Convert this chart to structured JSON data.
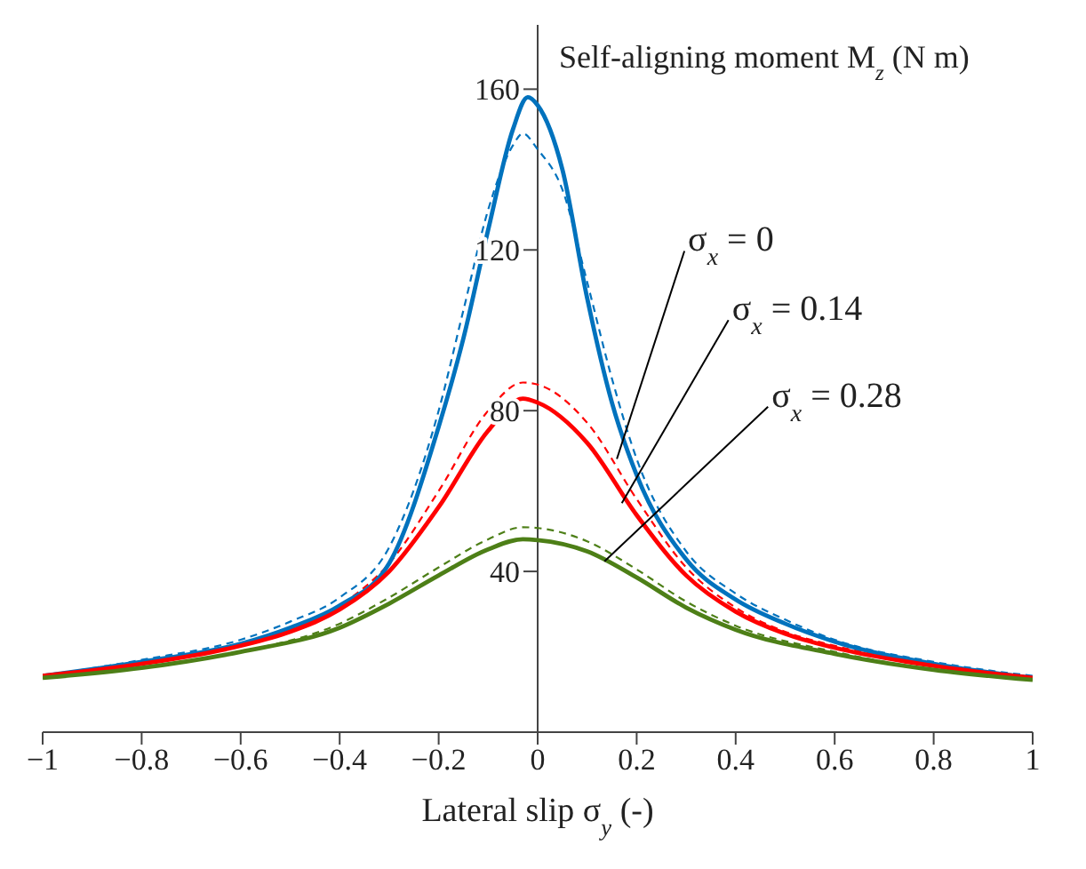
{
  "chart_data": {
    "type": "line",
    "title": "Self-aligning moment M$_{z}$ (N m)",
    "xlabel": "Lateral slip σ$_{y}$ (-)",
    "xlim": [
      -1,
      1
    ],
    "ylim": [
      0,
      176
    ],
    "xticks": [
      {
        "value": -1,
        "label": "−1"
      },
      {
        "value": -0.8,
        "label": "−0.8"
      },
      {
        "value": -0.6,
        "label": "−0.6"
      },
      {
        "value": -0.4,
        "label": "−0.4"
      },
      {
        "value": -0.2,
        "label": "−0.2"
      },
      0,
      0.2,
      0.4,
      0.6,
      0.8,
      1
    ],
    "yticks": [
      40,
      80,
      120,
      160
    ],
    "grid": false,
    "legend": false,
    "marker": "none",
    "series": [
      {
        "color": "#0072bd",
        "line_style": "dashed",
        "x": [
          -1,
          -0.8,
          -0.6,
          -0.5,
          -0.4,
          -0.3,
          -0.2,
          -0.15,
          -0.1,
          -0.05,
          -0.03,
          0,
          0.05,
          0.1,
          0.15,
          0.2,
          0.3,
          0.4,
          0.5,
          0.6,
          0.8,
          1
        ],
        "values": [
          14,
          18,
          23,
          27.5,
          33.5,
          46,
          80,
          105,
          130,
          146,
          149,
          145,
          135,
          112,
          88,
          68,
          45,
          34.5,
          28,
          23,
          17.5,
          14
        ]
      },
      {
        "color": "#ff0000",
        "line_style": "dashed",
        "x": [
          -1,
          -0.8,
          -0.6,
          -0.5,
          -0.4,
          -0.3,
          -0.2,
          -0.1,
          -0.03,
          0,
          0.1,
          0.2,
          0.3,
          0.4,
          0.5,
          0.6,
          0.8,
          1
        ],
        "values": [
          14,
          17.5,
          22,
          25.5,
          31.5,
          42,
          60,
          80,
          87,
          86.5,
          77,
          58,
          41,
          31,
          25,
          21.5,
          17,
          13.5
        ]
      },
      {
        "color": "#4d7f17",
        "line_style": "dashed",
        "x": [
          -1,
          -0.8,
          -0.6,
          -0.4,
          -0.3,
          -0.2,
          -0.1,
          -0.03,
          0,
          0.1,
          0.2,
          0.3,
          0.4,
          0.6,
          0.8,
          1
        ],
        "values": [
          13.5,
          16,
          20,
          27,
          33.5,
          41,
          48,
          51,
          50.8,
          47.5,
          40.5,
          32.5,
          26.5,
          20,
          15.5,
          13
        ]
      },
      {
        "color": "#0072bd",
        "line_style": "solid",
        "x": [
          -1,
          -0.8,
          -0.6,
          -0.5,
          -0.4,
          -0.3,
          -0.2,
          -0.15,
          -0.1,
          -0.05,
          -0.02,
          0,
          0.05,
          0.1,
          0.15,
          0.2,
          0.3,
          0.4,
          0.5,
          0.6,
          0.8,
          1
        ],
        "values": [
          14,
          17.5,
          22,
          26,
          31.5,
          42,
          76,
          98,
          125,
          150,
          158,
          156,
          140,
          108,
          82,
          64,
          43,
          33,
          27,
          22.5,
          17,
          13.5
        ]
      },
      {
        "color": "#ff0000",
        "line_style": "solid",
        "x": [
          -1,
          -0.8,
          -0.6,
          -0.5,
          -0.4,
          -0.3,
          -0.2,
          -0.1,
          -0.03,
          0,
          0.1,
          0.2,
          0.3,
          0.4,
          0.5,
          0.6,
          0.8,
          1
        ],
        "values": [
          14,
          17,
          21.5,
          25,
          30.5,
          40,
          56,
          75,
          83,
          82,
          72,
          54,
          39,
          30,
          24.5,
          21,
          16.5,
          13.5
        ]
      },
      {
        "color": "#4d7f17",
        "line_style": "solid",
        "x": [
          -1,
          -0.8,
          -0.6,
          -0.4,
          -0.3,
          -0.2,
          -0.1,
          -0.03,
          0,
          0.1,
          0.2,
          0.3,
          0.4,
          0.6,
          0.8,
          1
        ],
        "values": [
          13.5,
          16,
          20,
          26,
          32,
          39,
          45.5,
          48,
          47.8,
          45,
          38.5,
          31,
          25.5,
          19.5,
          15.5,
          13
        ]
      }
    ],
    "annotations": [
      {
        "text": "σ$_{x}$ = 0",
        "x": 0.16,
        "y": 68
      },
      {
        "text": "σ$_{x}$ = 0.14",
        "x": 0.17,
        "y": 57
      },
      {
        "text": "σ$_{x}$ = 0.28",
        "x": 0.135,
        "y": 42.5
      }
    ]
  }
}
